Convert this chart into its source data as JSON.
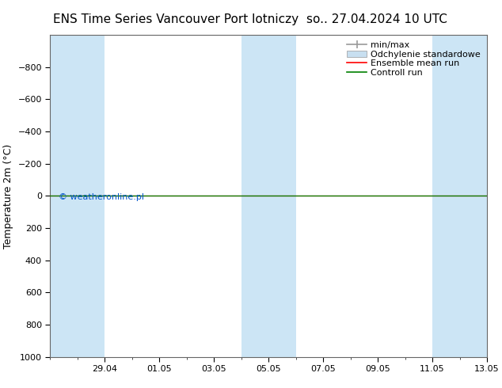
{
  "title": "ENS Time Series Vancouver Port lotniczy",
  "title_right": "so.. 27.04.2024 10 UTC",
  "ylabel": "Temperature 2m (°C)",
  "ylim_top": -1000,
  "ylim_bottom": 1000,
  "yticks": [
    -800,
    -600,
    -400,
    -200,
    0,
    200,
    400,
    600,
    800,
    1000
  ],
  "x_tick_labels": [
    "29.04",
    "01.05",
    "03.05",
    "05.05",
    "07.05",
    "09.05",
    "11.05",
    "13.05"
  ],
  "x_tick_positions": [
    2,
    4,
    6,
    8,
    10,
    12,
    14,
    16
  ],
  "xlim": [
    0,
    16
  ],
  "shaded_ranges": [
    [
      0,
      2
    ],
    [
      7,
      9
    ],
    [
      14,
      16
    ]
  ],
  "shaded_color": "#cce5f5",
  "ensemble_mean_color": "#ff0000",
  "control_run_color": "#008000",
  "minmax_color": "#999999",
  "std_color": "#c8dff0",
  "watermark_text": "© weatheronline.pl",
  "watermark_color": "#0055cc",
  "legend_labels": [
    "min/max",
    "Odchylenie standardowe",
    "Ensemble mean run",
    "Controll run"
  ],
  "background_color": "#ffffff",
  "spine_color": "#666666",
  "title_fontsize": 11,
  "tick_fontsize": 8,
  "ylabel_fontsize": 9,
  "legend_fontsize": 8
}
